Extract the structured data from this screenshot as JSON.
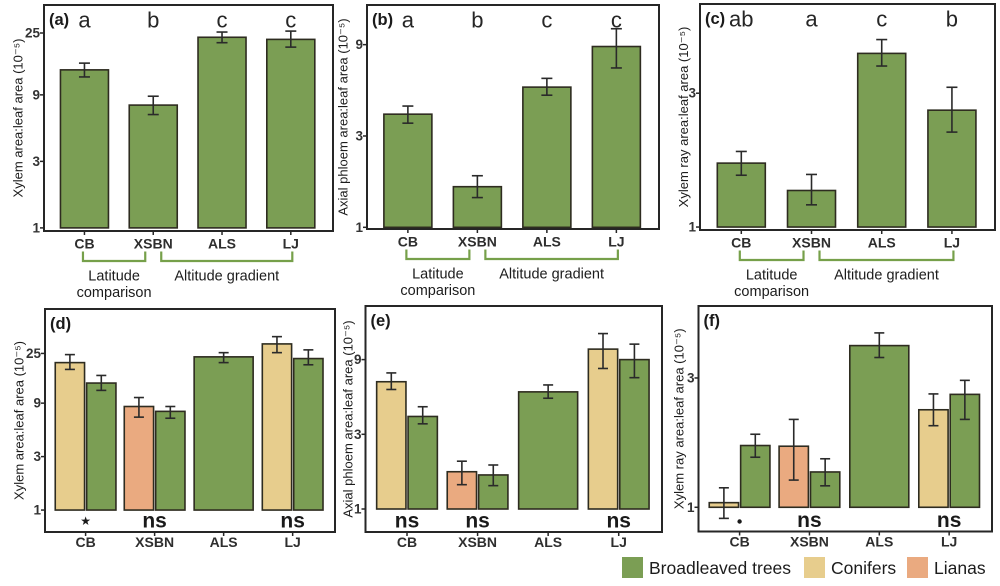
{
  "figure": {
    "background": "#ffffff",
    "colors": {
      "broadleaved": "#7b9e54",
      "conifers": "#e7cd8d",
      "lianas": "#eaaa80",
      "bar_stroke": "#2e2c20",
      "axis_stroke": "#262626",
      "error_stroke": "#2a2a2a",
      "bracket_stroke": "#76a04a",
      "text": "#1c1c1c"
    },
    "legend": {
      "items": [
        {
          "key": "broadleaved",
          "label": "Broadleaved trees",
          "color": "#7b9e54"
        },
        {
          "key": "conifers",
          "label": "Conifers",
          "color": "#e7cd8d"
        },
        {
          "key": "lianas",
          "label": "Lianas",
          "color": "#eaaa80"
        }
      ]
    },
    "x_categories": [
      "CB",
      "XSBN",
      "ALS",
      "LJ"
    ],
    "bracket_annotations": [
      {
        "from": "CB",
        "to": "XSBN",
        "label_lines": [
          "Latitude",
          "comparison"
        ]
      },
      {
        "from": "XSBN",
        "to": "LJ",
        "label_lines": [
          "Altitude gradient"
        ]
      }
    ]
  },
  "chart_data": [
    {
      "type": "bar",
      "panel": "(a)",
      "row": "top",
      "ylabel": "Xylem area:leaf area (10⁻⁵)",
      "yscale": "log",
      "yticks": [
        1,
        3,
        9,
        25
      ],
      "ylim": [
        0.95,
        39.7
      ],
      "categories": [
        "CB",
        "XSBN",
        "ALS",
        "LJ"
      ],
      "groups": [
        {
          "category": "CB",
          "letter": "a",
          "bars": [
            {
              "group": "broadleaved",
              "value": 13.6,
              "err_lo": 12.1,
              "err_hi": 15.2
            }
          ]
        },
        {
          "category": "XSBN",
          "letter": "b",
          "bars": [
            {
              "group": "broadleaved",
              "value": 7.6,
              "err_lo": 6.5,
              "err_hi": 8.8
            }
          ]
        },
        {
          "category": "ALS",
          "letter": "c",
          "bars": [
            {
              "group": "broadleaved",
              "value": 23.3,
              "err_lo": 21.3,
              "err_hi": 25.4
            }
          ]
        },
        {
          "category": "LJ",
          "letter": "c",
          "bars": [
            {
              "group": "broadleaved",
              "value": 22.5,
              "err_lo": 19.8,
              "err_hi": 25.8
            }
          ]
        }
      ],
      "show_brackets": true
    },
    {
      "type": "bar",
      "panel": "(b)",
      "row": "top",
      "ylabel": "Axial phloem area:leaf area (10⁻⁵)",
      "yscale": "log",
      "yticks": [
        1,
        3,
        9
      ],
      "ylim": [
        0.98,
        14.5
      ],
      "categories": [
        "CB",
        "XSBN",
        "ALS",
        "LJ"
      ],
      "groups": [
        {
          "category": "CB",
          "letter": "a",
          "bars": [
            {
              "group": "broadleaved",
              "value": 3.9,
              "err_lo": 3.5,
              "err_hi": 4.3
            }
          ]
        },
        {
          "category": "XSBN",
          "letter": "b",
          "bars": [
            {
              "group": "broadleaved",
              "value": 1.63,
              "err_lo": 1.43,
              "err_hi": 1.86
            }
          ]
        },
        {
          "category": "ALS",
          "letter": "c",
          "bars": [
            {
              "group": "broadleaved",
              "value": 5.4,
              "err_lo": 4.9,
              "err_hi": 6.0
            }
          ]
        },
        {
          "category": "LJ",
          "letter": "c",
          "bars": [
            {
              "group": "broadleaved",
              "value": 8.8,
              "err_lo": 6.8,
              "err_hi": 10.9
            }
          ]
        }
      ],
      "show_brackets": true
    },
    {
      "type": "bar",
      "panel": "(c)",
      "row": "top",
      "ylabel": "Xylem ray area:leaf area (10⁻⁵)",
      "yscale": "log",
      "yticks": [
        1,
        3
      ],
      "ylim": [
        0.976,
        6.24
      ],
      "categories": [
        "CB",
        "XSBN",
        "ALS",
        "LJ"
      ],
      "groups": [
        {
          "category": "CB",
          "letter": "ab",
          "bars": [
            {
              "group": "broadleaved",
              "value": 1.69,
              "err_lo": 1.53,
              "err_hi": 1.86
            }
          ]
        },
        {
          "category": "XSBN",
          "letter": "a",
          "bars": [
            {
              "group": "broadleaved",
              "value": 1.35,
              "err_lo": 1.2,
              "err_hi": 1.54
            }
          ]
        },
        {
          "category": "ALS",
          "letter": "c",
          "bars": [
            {
              "group": "broadleaved",
              "value": 4.16,
              "err_lo": 3.75,
              "err_hi": 4.66
            }
          ]
        },
        {
          "category": "LJ",
          "letter": "b",
          "bars": [
            {
              "group": "broadleaved",
              "value": 2.61,
              "err_lo": 2.18,
              "err_hi": 3.15
            }
          ]
        }
      ],
      "show_brackets": true
    },
    {
      "type": "bar",
      "panel": "(d)",
      "row": "bottom",
      "ylabel": "Xylem area:leaf area (10⁻⁵)",
      "yscale": "log",
      "yticks": [
        1,
        3,
        9,
        25
      ],
      "ylim": [
        0.637,
        62.3
      ],
      "categories": [
        "CB",
        "XSBN",
        "ALS",
        "LJ"
      ],
      "groups": [
        {
          "category": "CB",
          "sig": "*",
          "bars": [
            {
              "group": "conifers",
              "value": 20.7,
              "err_lo": 18.0,
              "err_hi": 24.4
            },
            {
              "group": "broadleaved",
              "value": 13.6,
              "err_lo": 11.7,
              "err_hi": 15.9
            }
          ]
        },
        {
          "category": "XSBN",
          "sig": "ns",
          "bars": [
            {
              "group": "lianas",
              "value": 8.4,
              "err_lo": 6.75,
              "err_hi": 10.1
            },
            {
              "group": "broadleaved",
              "value": 7.6,
              "err_lo": 6.6,
              "err_hi": 8.4
            }
          ]
        },
        {
          "category": "ALS",
          "sig": "",
          "bars": [
            {
              "group": "broadleaved",
              "value": 23.3,
              "err_lo": 20.7,
              "err_hi": 25.4
            }
          ]
        },
        {
          "category": "LJ",
          "sig": "ns",
          "bars": [
            {
              "group": "conifers",
              "value": 30.4,
              "err_lo": 25.4,
              "err_hi": 35.3
            },
            {
              "group": "broadleaved",
              "value": 22.5,
              "err_lo": 19.8,
              "err_hi": 26.9
            }
          ]
        }
      ],
      "show_brackets": false
    },
    {
      "type": "bar",
      "panel": "(e)",
      "row": "bottom",
      "ylabel": "Axial phloem area:leaf area (10⁻⁵)",
      "yscale": "log",
      "yticks": [
        1,
        3,
        9
      ],
      "ylim": [
        0.713,
        19.8
      ],
      "categories": [
        "CB",
        "XSBN",
        "ALS",
        "LJ"
      ],
      "groups": [
        {
          "category": "CB",
          "sig": "ns",
          "bars": [
            {
              "group": "conifers",
              "value": 6.5,
              "err_lo": 5.8,
              "err_hi": 7.4
            },
            {
              "group": "broadleaved",
              "value": 3.9,
              "err_lo": 3.5,
              "err_hi": 4.5
            }
          ]
        },
        {
          "category": "XSBN",
          "sig": "ns",
          "bars": [
            {
              "group": "lianas",
              "value": 1.73,
              "err_lo": 1.43,
              "err_hi": 2.02
            },
            {
              "group": "broadleaved",
              "value": 1.65,
              "err_lo": 1.41,
              "err_hi": 1.91
            }
          ]
        },
        {
          "category": "ALS",
          "sig": "",
          "bars": [
            {
              "group": "broadleaved",
              "value": 5.6,
              "err_lo": 5.1,
              "err_hi": 6.2
            }
          ]
        },
        {
          "category": "LJ",
          "sig": "ns",
          "bars": [
            {
              "group": "conifers",
              "value": 10.5,
              "err_lo": 7.9,
              "err_hi": 13.2
            },
            {
              "group": "broadleaved",
              "value": 9.0,
              "err_lo": 6.9,
              "err_hi": 11.3
            }
          ]
        }
      ],
      "show_brackets": false
    },
    {
      "type": "bar",
      "panel": "(f)",
      "row": "bottom",
      "ylabel": "Xylem ray area:leaf area (10⁻⁵)",
      "yscale": "log",
      "yticks": [
        1,
        3
      ],
      "ylim": [
        0.814,
        5.53
      ],
      "categories": [
        "CB",
        "XSBN",
        "ALS",
        "LJ"
      ],
      "groups": [
        {
          "category": "CB",
          "sig": ".",
          "bars": [
            {
              "group": "conifers",
              "value": 1.04,
              "err_lo": 0.91,
              "err_hi": 1.18
            },
            {
              "group": "broadleaved",
              "value": 1.69,
              "err_lo": 1.53,
              "err_hi": 1.86
            }
          ]
        },
        {
          "category": "XSBN",
          "sig": "ns",
          "bars": [
            {
              "group": "lianas",
              "value": 1.68,
              "err_lo": 1.26,
              "err_hi": 2.11
            },
            {
              "group": "broadleaved",
              "value": 1.35,
              "err_lo": 1.2,
              "err_hi": 1.51
            }
          ]
        },
        {
          "category": "ALS",
          "sig": "",
          "bars": [
            {
              "group": "broadleaved",
              "value": 3.95,
              "err_lo": 3.57,
              "err_hi": 4.4
            }
          ]
        },
        {
          "category": "LJ",
          "sig": "ns",
          "bars": [
            {
              "group": "conifers",
              "value": 2.29,
              "err_lo": 2.0,
              "err_hi": 2.62
            },
            {
              "group": "broadleaved",
              "value": 2.61,
              "err_lo": 2.11,
              "err_hi": 2.94
            }
          ]
        }
      ],
      "show_brackets": false
    }
  ]
}
